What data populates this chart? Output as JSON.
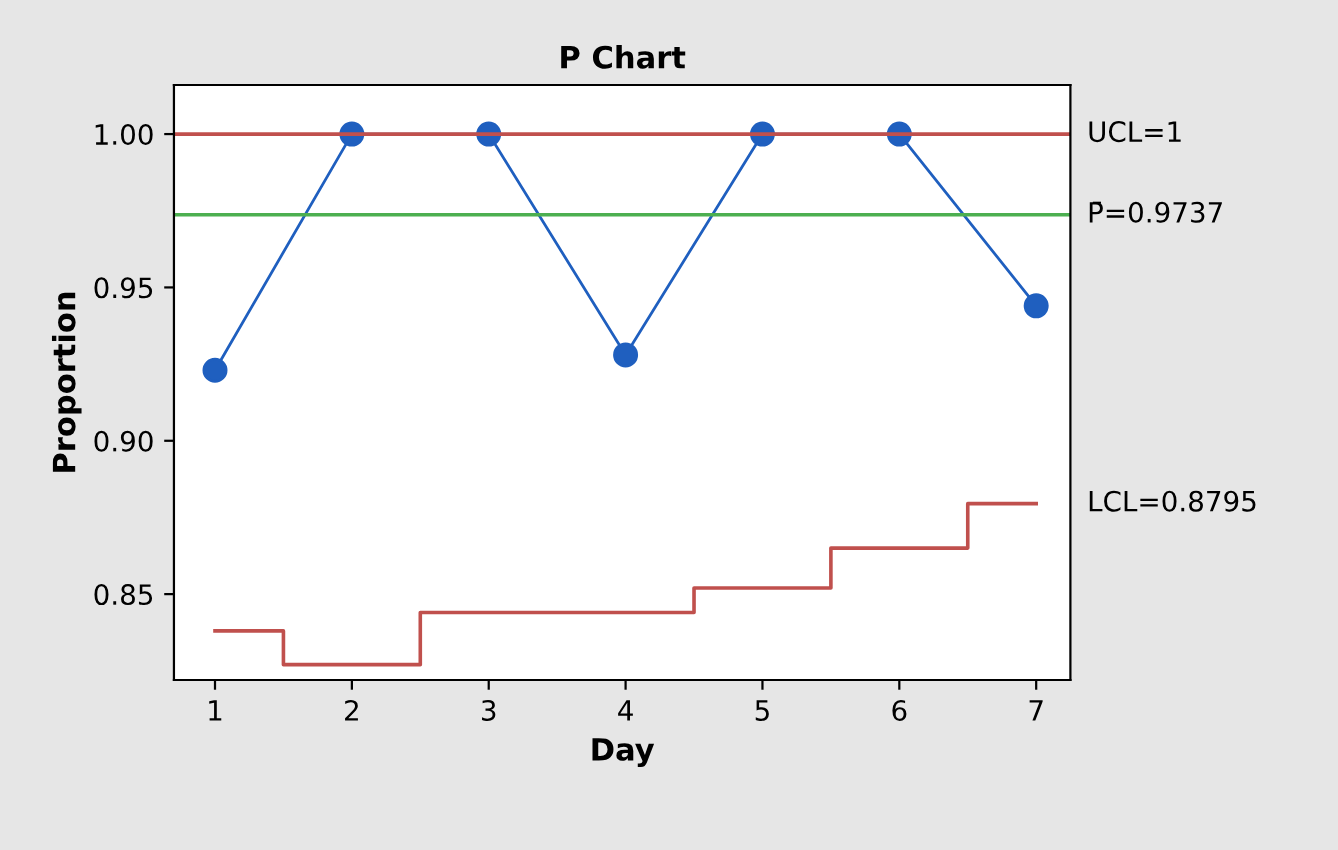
{
  "chart_data": {
    "type": "line",
    "title": "P Chart",
    "xlabel": "Day",
    "ylabel": "Proportion",
    "x": [
      1,
      2,
      3,
      4,
      5,
      6,
      7
    ],
    "series": [
      {
        "name": null,
        "color": "#1f5fbf",
        "marker": "circle",
        "values": [
          0.923,
          1.0,
          1.0,
          0.928,
          1.0,
          1.0,
          0.944
        ]
      },
      {
        "name": "LCL=0.8795",
        "type": "step",
        "color": "#c0504d",
        "marker": "none",
        "values": [
          0.838,
          0.827,
          0.844,
          0.844,
          0.852,
          0.865,
          0.8795
        ]
      }
    ],
    "ref_lines": [
      {
        "axis": "y",
        "value": 1.0,
        "label": "UCL=1",
        "color": "#c0504d"
      },
      {
        "axis": "y",
        "value": 0.9737,
        "label": "P̄=0.9737",
        "color": "#4caf50"
      }
    ],
    "xlim": [
      0.7,
      7.25
    ],
    "ylim": [
      0.822,
      1.016
    ],
    "xticks": [
      1,
      2,
      3,
      4,
      5,
      6,
      7
    ],
    "yticks": [
      {
        "value": 0.85,
        "label": "0.85"
      },
      {
        "value": 0.9,
        "label": "0.90"
      },
      {
        "value": 0.95,
        "label": "0.95"
      },
      {
        "value": 1.0,
        "label": "1.00"
      }
    ],
    "grid": false
  }
}
